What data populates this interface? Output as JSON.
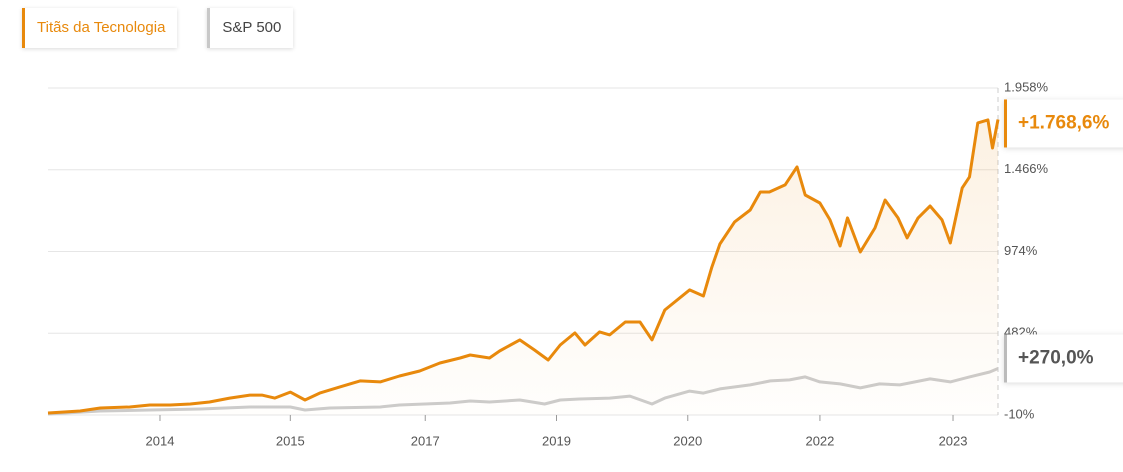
{
  "chart_data": {
    "type": "line",
    "xlim": [
      2013.25,
      2023.6
    ],
    "xticks": [
      {
        "value": 2014.47,
        "label": "2014"
      },
      {
        "value": 2015.89,
        "label": "2015"
      },
      {
        "value": 2017.36,
        "label": "2017"
      },
      {
        "value": 2018.79,
        "label": "2019"
      },
      {
        "value": 2020.22,
        "label": "2020"
      },
      {
        "value": 2021.66,
        "label": "2022"
      },
      {
        "value": 2023.11,
        "label": "2023"
      }
    ],
    "ylim": [
      -10,
      1958
    ],
    "yticks": [
      {
        "value": -10,
        "label": "-10%"
      },
      {
        "value": 482,
        "label": "482%"
      },
      {
        "value": 974,
        "label": "974%"
      },
      {
        "value": 1466,
        "label": "1.466%"
      },
      {
        "value": 1958,
        "label": "1.958%"
      }
    ],
    "grid": true,
    "series": [
      {
        "name": "Titãs da Tecnologia",
        "color": "#e8890c",
        "x": [
          2013.25,
          2013.6,
          2013.82,
          2014.14,
          2014.36,
          2014.58,
          2014.8,
          2015.01,
          2015.23,
          2015.45,
          2015.58,
          2015.72,
          2015.89,
          2016.05,
          2016.21,
          2016.43,
          2016.65,
          2016.87,
          2017.08,
          2017.3,
          2017.52,
          2017.74,
          2017.85,
          2018.06,
          2018.17,
          2018.39,
          2018.55,
          2018.7,
          2018.83,
          2018.99,
          2019.1,
          2019.26,
          2019.37,
          2019.54,
          2019.7,
          2019.83,
          2019.97,
          2020.24,
          2020.39,
          2020.48,
          2020.57,
          2020.73,
          2020.9,
          2021.01,
          2021.11,
          2021.28,
          2021.41,
          2021.5,
          2021.66,
          2021.77,
          2021.88,
          2021.96,
          2022.1,
          2022.26,
          2022.37,
          2022.51,
          2022.61,
          2022.73,
          2022.86,
          2022.99,
          2023.08,
          2023.21,
          2023.29,
          2023.38,
          2023.49,
          2023.54,
          2023.6
        ],
        "values": [
          2,
          14,
          32,
          38,
          50,
          50,
          56,
          68,
          92,
          110,
          110,
          92,
          128,
          80,
          122,
          159,
          195,
          189,
          225,
          255,
          303,
          333,
          351,
          333,
          375,
          442,
          381,
          321,
          411,
          484,
          411,
          490,
          472,
          550,
          550,
          442,
          622,
          743,
          706,
          875,
          1019,
          1152,
          1224,
          1332,
          1332,
          1375,
          1483,
          1314,
          1266,
          1164,
          1007,
          1176,
          971,
          1116,
          1284,
          1176,
          1056,
          1176,
          1248,
          1164,
          1025,
          1357,
          1423,
          1748,
          1766,
          1597,
          1768.6
        ],
        "value_labels": [
          null,
          null,
          null,
          null,
          null,
          null,
          null,
          null,
          null,
          null,
          null,
          null,
          null,
          null,
          null,
          null,
          null,
          null,
          null,
          null,
          null,
          null,
          null,
          null,
          null,
          null,
          null,
          null,
          null,
          null,
          null,
          null,
          null,
          null,
          null,
          null,
          null,
          null,
          null,
          null,
          null,
          null,
          null,
          null,
          null,
          null,
          null,
          null,
          null,
          null,
          null,
          null,
          null,
          null,
          null,
          null,
          null,
          null,
          null,
          null,
          null,
          null,
          null,
          null,
          null,
          null,
          "+1.768,6%"
        ]
      },
      {
        "name": "S&P 500",
        "color": "#cccccc",
        "x": [
          2013.25,
          2013.82,
          2014.36,
          2014.91,
          2015.45,
          2015.89,
          2016.05,
          2016.32,
          2016.87,
          2017.08,
          2017.63,
          2017.85,
          2018.06,
          2018.39,
          2018.66,
          2018.83,
          2019.04,
          2019.37,
          2019.59,
          2019.83,
          2019.97,
          2020.24,
          2020.39,
          2020.57,
          2020.9,
          2021.12,
          2021.33,
          2021.5,
          2021.66,
          2021.88,
          2022.1,
          2022.31,
          2022.53,
          2022.86,
          2023.08,
          2023.29,
          2023.51,
          2023.6
        ],
        "values": [
          -4,
          14,
          20,
          26,
          38,
          38,
          20,
          32,
          38,
          50,
          62,
          74,
          68,
          80,
          56,
          80,
          86,
          92,
          104,
          56,
          92,
          134,
          122,
          147,
          171,
          195,
          201,
          219,
          189,
          177,
          153,
          177,
          171,
          207,
          189,
          219,
          249,
          270
        ],
        "value_labels": [
          null,
          null,
          null,
          null,
          null,
          null,
          null,
          null,
          null,
          null,
          null,
          null,
          null,
          null,
          null,
          null,
          null,
          null,
          null,
          null,
          null,
          null,
          null,
          null,
          null,
          null,
          null,
          null,
          null,
          null,
          null,
          null,
          null,
          null,
          null,
          null,
          null,
          "+270,0%"
        ]
      }
    ]
  }
}
